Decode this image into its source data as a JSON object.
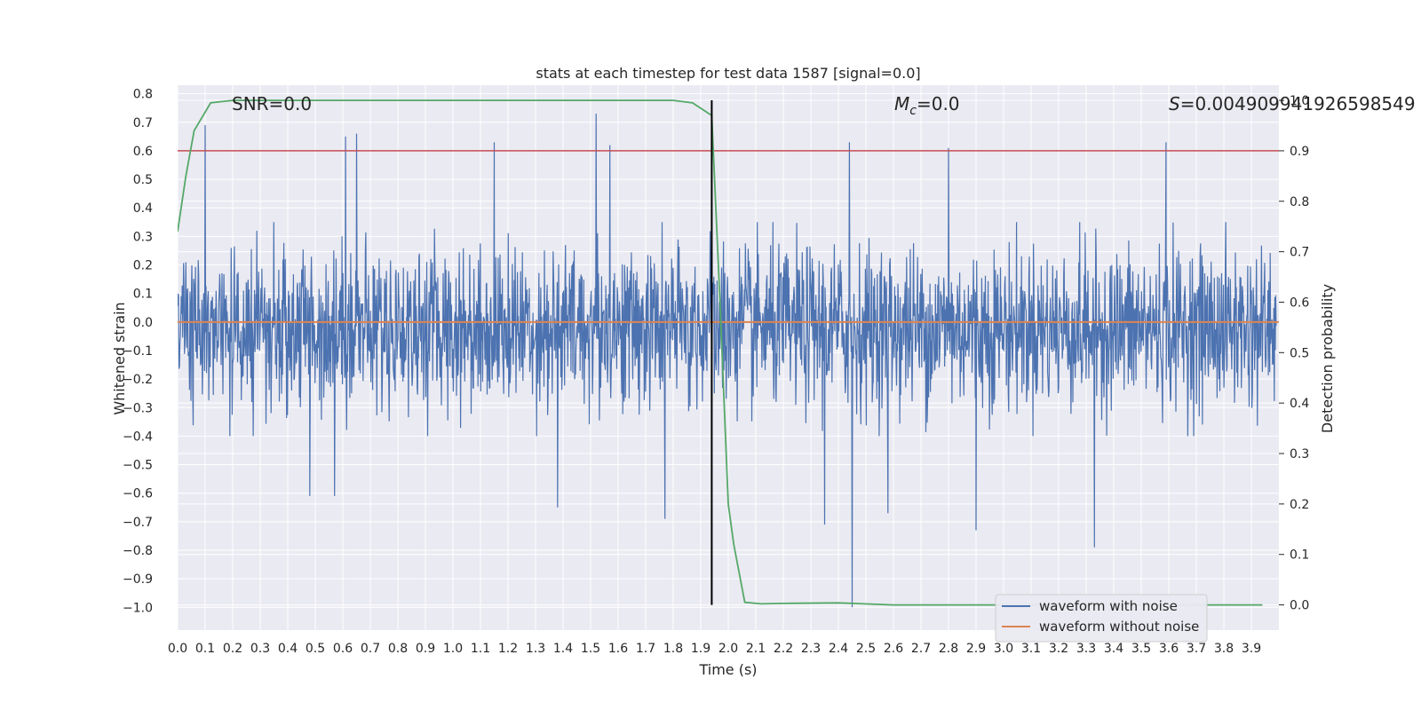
{
  "chart_data": {
    "type": "line",
    "title": "stats at each timestep for test data 1587 [signal=0.0]",
    "xlabel": "Time (s)",
    "ylabel": "Whitened strain",
    "y2label": "Detection probability",
    "xlim": [
      0.0,
      4.0
    ],
    "ylim": [
      -1.08,
      0.83
    ],
    "y2lim": [
      -0.05,
      1.03
    ],
    "xticks": [
      "0.0",
      "0.1",
      "0.2",
      "0.3",
      "0.4",
      "0.5",
      "0.6",
      "0.7",
      "0.8",
      "0.9",
      "1.0",
      "1.1",
      "1.2",
      "1.3",
      "1.4",
      "1.5",
      "1.6",
      "1.7",
      "1.8",
      "1.9",
      "2.0",
      "2.1",
      "2.2",
      "2.3",
      "2.4",
      "2.5",
      "2.6",
      "2.7",
      "2.8",
      "2.9",
      "3.0",
      "3.1",
      "3.2",
      "3.3",
      "3.4",
      "3.5",
      "3.6",
      "3.7",
      "3.8",
      "3.9"
    ],
    "yticks": [
      "0.8",
      "0.7",
      "0.6",
      "0.5",
      "0.4",
      "0.3",
      "0.2",
      "0.1",
      "0.0",
      "−0.1",
      "−0.2",
      "−0.3",
      "−0.4",
      "−0.5",
      "−0.6",
      "−0.7",
      "−0.8",
      "−0.9",
      "−1.0"
    ],
    "y2ticks": [
      "1.0",
      "0.9",
      "0.8",
      "0.7",
      "0.6",
      "0.5",
      "0.4",
      "0.3",
      "0.2",
      "0.1",
      "0.0"
    ],
    "annotations": {
      "snr_text": "SNR=0.0",
      "mc_symbol": "M",
      "mc_subscript": "c",
      "mc_value": "=0.0",
      "s_symbol": "S",
      "s_value": "=0.004909941926598549"
    },
    "noise_envelope": {
      "typical_max": 0.35,
      "typical_min": -0.4,
      "peaks": [
        {
          "t": 0.1,
          "v": 0.69
        },
        {
          "t": 0.61,
          "v": 0.65
        },
        {
          "t": 0.65,
          "v": 0.66
        },
        {
          "t": 1.15,
          "v": 0.63
        },
        {
          "t": 1.52,
          "v": 0.73
        },
        {
          "t": 1.57,
          "v": 0.62
        },
        {
          "t": 2.44,
          "v": 0.63
        },
        {
          "t": 2.8,
          "v": 0.61
        },
        {
          "t": 3.59,
          "v": 0.63
        },
        {
          "t": 0.48,
          "v": -0.61
        },
        {
          "t": 0.57,
          "v": -0.61
        },
        {
          "t": 1.38,
          "v": -0.65
        },
        {
          "t": 1.77,
          "v": -0.69
        },
        {
          "t": 2.35,
          "v": -0.71
        },
        {
          "t": 2.45,
          "v": -1.0
        },
        {
          "t": 2.58,
          "v": -0.67
        },
        {
          "t": 2.9,
          "v": -0.73
        },
        {
          "t": 3.33,
          "v": -0.79
        }
      ]
    },
    "threshold_line": {
      "value": 0.9,
      "axis": "right",
      "color": "#c44e52"
    },
    "vertical_marker": {
      "t": 1.94
    },
    "series": [
      {
        "name": "waveform with noise",
        "color": "#4c72b0",
        "axis": "left",
        "kind": "noise"
      },
      {
        "name": "waveform without noise",
        "color": "#dd8452",
        "axis": "left",
        "kind": "flat",
        "value": 0.0
      },
      {
        "name": "detection probability",
        "color": "#55a868",
        "axis": "right",
        "kind": "line",
        "x": [
          0.0,
          0.03,
          0.06,
          0.12,
          0.2,
          0.4,
          0.8,
          1.2,
          1.6,
          1.8,
          1.87,
          1.94,
          1.97,
          2.0,
          2.02,
          2.06,
          2.12,
          2.2,
          2.4,
          2.6,
          3.0,
          3.5,
          3.94
        ],
        "values": [
          0.74,
          0.85,
          0.94,
          0.995,
          1.0,
          1.0,
          1.0,
          1.0,
          1.0,
          1.0,
          0.995,
          0.97,
          0.6,
          0.2,
          0.12,
          0.005,
          0.002,
          0.003,
          0.004,
          0.0,
          0.0,
          0.0,
          0.0
        ]
      }
    ],
    "legend": {
      "position": "bottom-right",
      "entries": [
        "waveform with noise",
        "waveform without noise"
      ]
    }
  }
}
